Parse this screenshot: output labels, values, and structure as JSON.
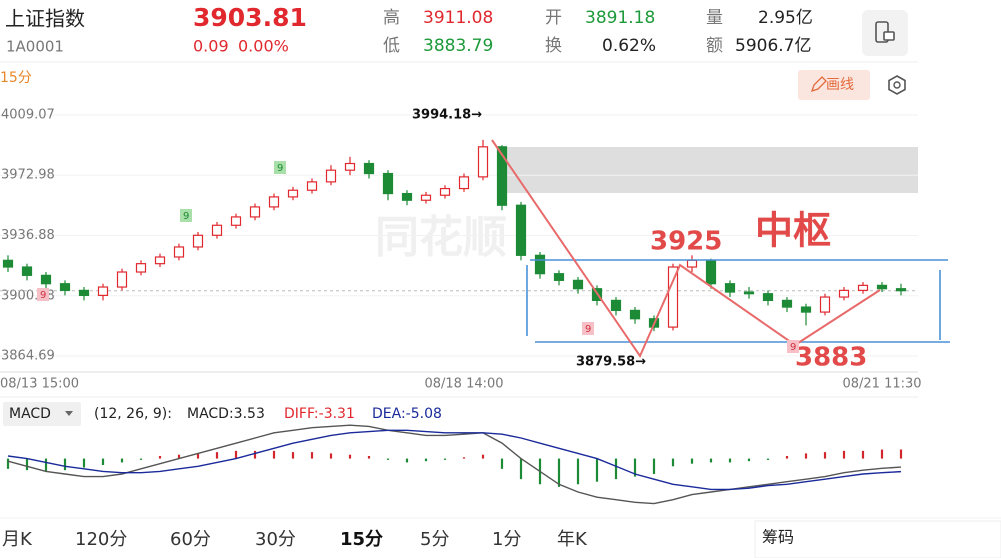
{
  "header": {
    "name": "上证指数",
    "code": "1A0001",
    "price": "3903.81",
    "change": "0.09",
    "change_pct": "0.00%",
    "high_label": "高",
    "high": "3911.08",
    "low_label": "低",
    "low": "3883.79",
    "open_label": "开",
    "open": "3891.18",
    "turnover_label": "换",
    "turnover": "0.62%",
    "volume_label": "量",
    "volume": "2.95亿",
    "amount_label": "额",
    "amount": "5906.7亿"
  },
  "period": "15分",
  "draw_button": "画线",
  "watermark": "同花顺",
  "chart_data": [
    {
      "type": "candlestick",
      "open": [
        3922,
        3918,
        3913,
        3908,
        3904,
        3901,
        3906,
        3915,
        3920,
        3924,
        3930,
        3937,
        3943,
        3948,
        3954,
        3960,
        3964,
        3969,
        3976,
        3980,
        3974,
        3962,
        3958,
        3961,
        3965,
        3972,
        3990,
        3955,
        3925,
        3914,
        3910,
        3905,
        3898,
        3892,
        3887,
        3882,
        3918,
        3922,
        3908,
        3903,
        3902,
        3898,
        3894,
        3891,
        3900,
        3904,
        3907,
        3905
      ],
      "close": [
        3918,
        3913,
        3908,
        3904,
        3901,
        3906,
        3915,
        3920,
        3924,
        3930,
        3937,
        3943,
        3948,
        3954,
        3960,
        3964,
        3969,
        3976,
        3980,
        3974,
        3962,
        3958,
        3961,
        3965,
        3972,
        3990,
        3955,
        3925,
        3914,
        3910,
        3905,
        3898,
        3892,
        3887,
        3882,
        3918,
        3922,
        3908,
        3903,
        3902,
        3898,
        3894,
        3891,
        3900,
        3904,
        3907,
        3905,
        3903.81
      ],
      "high": [
        3925,
        3920,
        3915,
        3910,
        3906,
        3908,
        3917,
        3922,
        3926,
        3932,
        3939,
        3945,
        3950,
        3956,
        3962,
        3966,
        3971,
        3979,
        3984,
        3982,
        3976,
        3964,
        3963,
        3967,
        3974,
        3994.18,
        3991,
        3957,
        3927,
        3916,
        3912,
        3907,
        3900,
        3894,
        3889,
        3920,
        3925,
        3923,
        3910,
        3906,
        3904,
        3900,
        3896,
        3902,
        3906,
        3909,
        3909,
        3908
      ],
      "low": [
        3915,
        3910,
        3905,
        3901,
        3898,
        3898,
        3904,
        3913,
        3918,
        3922,
        3928,
        3935,
        3941,
        3946,
        3952,
        3958,
        3962,
        3967,
        3973,
        3971,
        3958,
        3955,
        3956,
        3959,
        3963,
        3970,
        3952,
        3922,
        3911,
        3907,
        3902,
        3895,
        3889,
        3884,
        3879.58,
        3880,
        3915,
        3905,
        3900,
        3899,
        3895,
        3891,
        3883,
        3889,
        3898,
        3902,
        3903,
        3901
      ],
      "categories": [
        "08/13 15:00",
        null,
        null,
        null,
        null,
        null,
        null,
        null,
        null,
        null,
        null,
        null,
        null,
        null,
        null,
        null,
        null,
        null,
        null,
        null,
        null,
        null,
        null,
        null,
        "08/18 14:00",
        null,
        null,
        null,
        null,
        null,
        null,
        null,
        null,
        null,
        null,
        null,
        null,
        null,
        null,
        null,
        null,
        null,
        null,
        null,
        null,
        null,
        "08/21 11:30",
        null
      ],
      "up_color": "#e0282e",
      "down_color": "#1d8a36",
      "ylim": [
        3855.1,
        4021.05
      ],
      "yticks": [
        4009.07,
        3972.98,
        3936.88,
        3900.78,
        3864.69
      ],
      "grid": true,
      "annotations": [
        "3994.18→",
        "3879.58→",
        "3925",
        "中枢",
        "3883"
      ],
      "td_labels": [
        "9",
        "9",
        "9",
        "9",
        "9"
      ]
    },
    {
      "type": "macd",
      "selector": "MACD",
      "params": "(12, 26, 9):",
      "readouts": [
        "MACD:3.53",
        "DIFF:-3.31",
        "DEA:-5.08"
      ],
      "values": [
        -4,
        -4.5,
        -5,
        -4.5,
        -3.5,
        -2.5,
        -1.5,
        -0.5,
        1,
        1.5,
        2,
        2.5,
        3,
        3,
        3,
        2.5,
        2.5,
        2,
        1.5,
        1,
        -0.5,
        -1.5,
        -1,
        -0.5,
        0.5,
        1.5,
        -4,
        -8,
        -10,
        -11,
        -10,
        -9,
        -8,
        -7,
        -6,
        -3,
        -2,
        -1.5,
        -1.5,
        -1,
        -0.5,
        1,
        2,
        2.5,
        3,
        3,
        3.5,
        3.53
      ],
      "diff": [
        -1,
        -3,
        -5,
        -6,
        -7,
        -7,
        -6,
        -4,
        -2,
        0,
        2,
        4,
        6,
        8,
        10,
        11,
        12,
        12.5,
        13,
        12.5,
        11,
        10,
        9,
        9,
        9.5,
        10,
        6,
        0,
        -5,
        -10,
        -13,
        -15,
        -16,
        -17,
        -17.5,
        -16,
        -14,
        -13,
        -12,
        -11,
        -10,
        -9,
        -8,
        -7,
        -5.5,
        -4.5,
        -3.8,
        -3.31
      ],
      "dea": [
        1,
        0,
        -1.5,
        -3,
        -4,
        -5,
        -5.5,
        -5.5,
        -5,
        -4,
        -3,
        -1.5,
        0,
        2,
        4,
        6,
        7.5,
        9,
        10,
        10.5,
        11,
        11,
        10.5,
        10,
        10,
        10,
        9.5,
        8,
        6,
        4,
        2,
        0,
        -3,
        -6,
        -8,
        -10,
        -11,
        -12,
        -12,
        -11.5,
        -10.5,
        -10,
        -9,
        -8,
        -7,
        -6,
        -5.5,
        -5.08
      ],
      "ylim": [
        -20,
        15
      ],
      "up_color": "#d0262c",
      "down_color": "#1d8a36",
      "diff_color": "#555555",
      "dea_color": "#1a2a9a"
    }
  ],
  "tabs": [
    "月K",
    "120分",
    "60分",
    "30分",
    "15分",
    "5分",
    "1分",
    "年K"
  ],
  "chips_button": "筹码"
}
